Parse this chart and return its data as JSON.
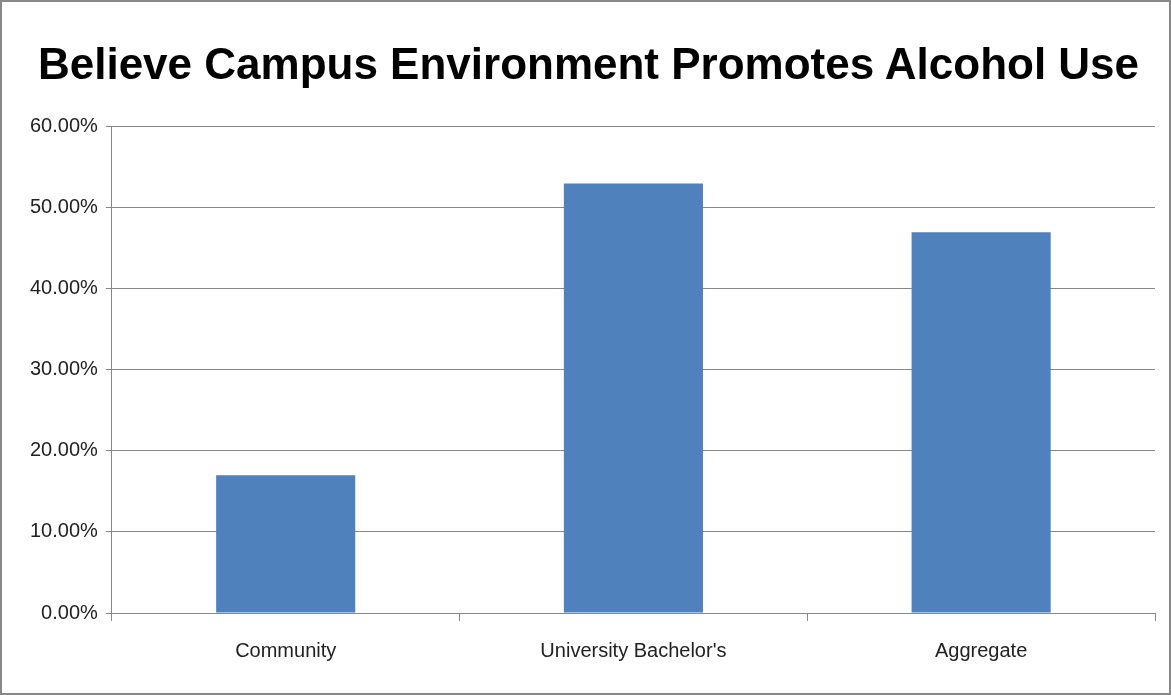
{
  "chart_data": {
    "type": "bar",
    "title": "Believe Campus Environment Promotes Alcohol Use",
    "categories": [
      "Community",
      "University Bachelor's",
      "Aggregate"
    ],
    "values": [
      17,
      53,
      47
    ],
    "color": "#4f81bd",
    "ylim": [
      0,
      60
    ],
    "yticks": [
      {
        "value": 0,
        "label": "0.00%"
      },
      {
        "value": 10,
        "label": "10.00%"
      },
      {
        "value": 20,
        "label": "20.00%"
      },
      {
        "value": 30,
        "label": "30.00%"
      },
      {
        "value": 40,
        "label": "40.00%"
      },
      {
        "value": 50,
        "label": "50.00%"
      },
      {
        "value": 60,
        "label": "60.00%"
      }
    ],
    "grid": "y",
    "legend": false
  }
}
